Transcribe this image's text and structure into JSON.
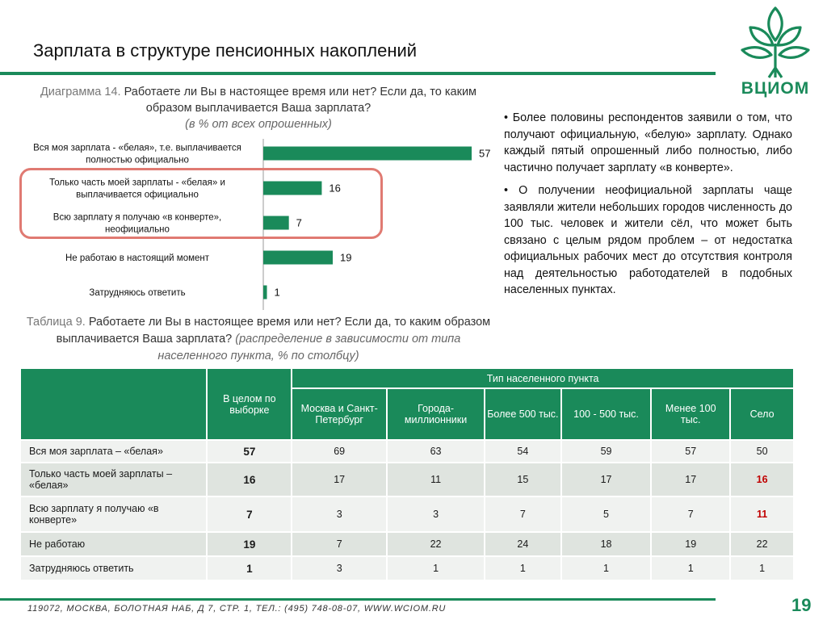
{
  "header": {
    "title": "Зарплата в структуре пенсионных накоплений",
    "logo_text": "ВЦИОМ"
  },
  "diagram": {
    "label": "Диаграмма 14.",
    "question": "Работаете ли Вы в настоящее время или нет? Если да, то каким образом выплачивается Ваша зарплата?",
    "note": "(в % от всех опрошенных)"
  },
  "chart_data": {
    "type": "bar",
    "orientation": "horizontal",
    "categories": [
      [
        "Вся моя зарплата - «белая», т.е. выплачивается",
        "полностью официально"
      ],
      [
        "Только часть моей зарплаты - «белая» и",
        "выплачивается официально"
      ],
      [
        "Всю зарплату я получаю «в конверте»,",
        "неофициально"
      ],
      [
        "Не работаю в настоящий момент"
      ],
      [
        "Затрудняюсь ответить"
      ]
    ],
    "values": [
      57,
      16,
      7,
      19,
      1
    ],
    "color": "#1a8a5a",
    "xlim": [
      0,
      60
    ],
    "grid": false
  },
  "commentary": [
    "• Более половины респондентов заявили о том, что получают официальную, «белую» зарплату. Однако каждый пятый опрошенный либо полностью, либо частично получает зарплату «в конверте».",
    "• О получении неофициальной зарплаты чаще заявляли жители небольших городов численность до 100 тыс. человек и жители сёл, что может быть связано с целым рядом проблем – от недостатка официальных рабочих мест до отсутствия контроля над деятельностью работодателей в подобных населенных пунктах."
  ],
  "table": {
    "label": "Таблица 9.",
    "question": "Работаете ли Вы в настоящее время или нет? Если да, то каким образом выплачивается Ваша зарплата?",
    "note": "(распределение в зависимости от типа населенного пункта, % по столбцу)",
    "total_header": "В целом по выборке",
    "group_header": "Тип населенного пункта",
    "columns": [
      "Москва и Санкт-Петербург",
      "Города-миллионники",
      "Более 500 тыс.",
      "100 - 500 тыс.",
      "Менее 100 тыс.",
      "Село"
    ],
    "rows": [
      {
        "label": "Вся моя зарплата – «белая»",
        "total": "57",
        "values": [
          "69",
          "63",
          "54",
          "59",
          "57",
          "50"
        ]
      },
      {
        "label": "Только часть моей зарплаты – «белая»",
        "total": "16",
        "values": [
          "17",
          "11",
          "15",
          "17",
          "17",
          "16"
        ]
      },
      {
        "label": "Всю зарплату я получаю «в конверте»",
        "total": "7",
        "values": [
          "3",
          "3",
          "7",
          "5",
          "7",
          "11"
        ]
      },
      {
        "label": "Не работаю",
        "total": "19",
        "values": [
          "7",
          "22",
          "24",
          "18",
          "19",
          "22"
        ]
      },
      {
        "label": "Затрудняюсь ответить",
        "total": "1",
        "values": [
          "3",
          "1",
          "1",
          "1",
          "1",
          "1"
        ]
      }
    ],
    "highlight_color": "#c00000"
  },
  "footer": {
    "address": "119072, МОСКВА, БОЛОТНАЯ НАБ, Д 7, СТР. 1, ТЕЛ.: (495) 748-08-07, WWW.WCIOM.RU",
    "page": "19"
  }
}
